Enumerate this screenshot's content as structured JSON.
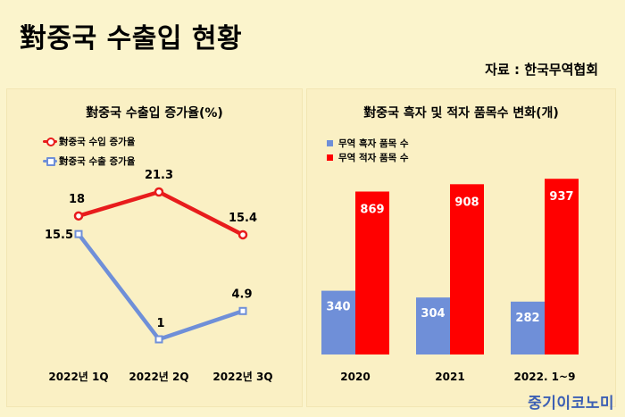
{
  "page": {
    "title": "對중국 수출입 현황",
    "source": "자료 : 한국무역협회",
    "brand": "중기이코노미",
    "background": "#fbf4cc"
  },
  "chart_data": [
    {
      "type": "line",
      "title": "對중국 수출입 증가율(%)",
      "categories": [
        "2022년 1Q",
        "2022년 2Q",
        "2022년 3Q"
      ],
      "series": [
        {
          "name": "對중국 수입 증가율",
          "values": [
            18,
            21.3,
            15.4
          ],
          "color": "#e81c1c"
        },
        {
          "name": "對중국 수출 증가율",
          "values": [
            15.5,
            1,
            4.9
          ],
          "color": "#6f8fd8"
        }
      ],
      "legend_position": "top-left",
      "grid": false,
      "data_labels": true
    },
    {
      "type": "bar",
      "title": "對중국 흑자 및 적자 품목수 변화(개)",
      "categories": [
        "2020",
        "2021",
        "2022. 1~9"
      ],
      "series": [
        {
          "name": "무역 흑자 품목 수",
          "values": [
            340,
            304,
            282
          ],
          "color": "#6f8fd8"
        },
        {
          "name": "무역 적자 품목 수",
          "values": [
            869,
            908,
            937
          ],
          "color": "#ff0000"
        }
      ],
      "ylim": [
        0,
        1000
      ],
      "legend_position": "top-left",
      "grid": false,
      "data_labels": true
    }
  ]
}
